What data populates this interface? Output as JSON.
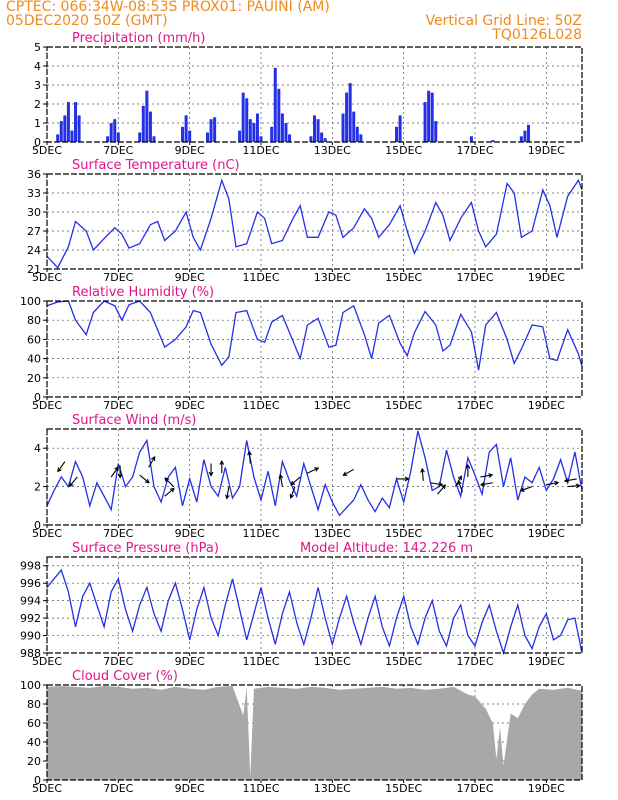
{
  "header": {
    "line1_left": "CPTEC:   066:34W-08:53S   PROX01: PAUINI (AM)",
    "line2_left": "05DEC2020 50Z (GMT)",
    "line2_right": "Vertical Grid Line: 50Z",
    "line3_right": "TQ0126L028"
  },
  "chart_data": [
    {
      "id": "precip",
      "type": "bar",
      "title": "Precipitation (mm/h)",
      "ylim": [
        0,
        5
      ],
      "yticks": [
        0,
        1,
        2,
        3,
        4,
        5
      ],
      "x_tick_labels": [
        "5DEC",
        "7DEC",
        "9DEC",
        "11DEC",
        "13DEC",
        "15DEC",
        "17DEC",
        "19DEC"
      ],
      "x_range_days": [
        5,
        20
      ],
      "x": [
        5.3,
        5.4,
        5.5,
        5.6,
        5.7,
        5.8,
        5.9,
        6.7,
        6.8,
        6.9,
        7.0,
        7.6,
        7.7,
        7.8,
        7.9,
        8.0,
        8.8,
        8.9,
        9.0,
        9.5,
        9.6,
        9.7,
        10.4,
        10.5,
        10.6,
        10.7,
        10.8,
        10.9,
        11.0,
        11.3,
        11.4,
        11.5,
        11.6,
        11.7,
        11.8,
        12.4,
        12.5,
        12.6,
        12.7,
        12.8,
        13.3,
        13.4,
        13.5,
        13.6,
        13.7,
        13.8,
        14.8,
        14.9,
        15.6,
        15.7,
        15.8,
        15.9,
        16.9,
        17.5,
        18.3,
        18.4,
        18.5
      ],
      "values": [
        0.4,
        1.1,
        1.4,
        2.1,
        0.6,
        2.1,
        1.4,
        0.3,
        1.0,
        1.2,
        0.5,
        0.5,
        1.9,
        2.7,
        1.6,
        0.3,
        0.8,
        1.4,
        0.6,
        0.5,
        1.2,
        1.3,
        0.6,
        2.6,
        2.3,
        1.2,
        1.0,
        1.5,
        0.3,
        0.8,
        3.9,
        2.8,
        1.5,
        1.0,
        0.4,
        0.3,
        1.4,
        1.2,
        0.5,
        0.2,
        1.5,
        2.6,
        3.1,
        1.6,
        0.8,
        0.4,
        0.8,
        1.4,
        2.1,
        2.7,
        2.6,
        1.1,
        0.3,
        0.1,
        0.3,
        0.6,
        0.9
      ]
    },
    {
      "id": "temp",
      "type": "line",
      "title": "Surface Temperature (nC)",
      "ylim": [
        21,
        36
      ],
      "yticks": [
        21,
        24,
        27,
        30,
        33,
        36
      ],
      "x_tick_labels": [
        "5DEC",
        "7DEC",
        "9DEC",
        "11DEC",
        "13DEC",
        "15DEC",
        "17DEC",
        "19DEC"
      ],
      "x_range_days": [
        5,
        20
      ],
      "x": [
        5.0,
        5.3,
        5.6,
        5.8,
        6.1,
        6.3,
        6.6,
        6.9,
        7.1,
        7.3,
        7.6,
        7.9,
        8.1,
        8.3,
        8.6,
        8.9,
        9.1,
        9.3,
        9.6,
        9.9,
        10.1,
        10.3,
        10.6,
        10.9,
        11.1,
        11.3,
        11.6,
        11.9,
        12.1,
        12.3,
        12.6,
        12.9,
        13.1,
        13.3,
        13.6,
        13.9,
        14.1,
        14.3,
        14.6,
        14.9,
        15.1,
        15.3,
        15.6,
        15.9,
        16.1,
        16.3,
        16.6,
        16.9,
        17.1,
        17.3,
        17.6,
        17.9,
        18.1,
        18.3,
        18.6,
        18.9,
        19.1,
        19.3,
        19.6,
        19.9,
        20.0
      ],
      "values": [
        23.0,
        21.2,
        24.5,
        28.5,
        27.0,
        24.0,
        25.8,
        27.5,
        26.5,
        24.3,
        25.0,
        28.0,
        28.5,
        25.5,
        27.0,
        30.0,
        26.0,
        24.0,
        29.0,
        35.0,
        32.0,
        24.5,
        25.0,
        30.0,
        29.0,
        25.0,
        25.5,
        29.0,
        31.0,
        26.0,
        26.0,
        30.0,
        29.5,
        26.0,
        27.5,
        30.5,
        29.0,
        26.0,
        28.0,
        31.0,
        27.0,
        23.5,
        27.0,
        31.5,
        29.5,
        25.5,
        29.0,
        31.5,
        27.0,
        24.5,
        26.5,
        34.5,
        33.0,
        26.0,
        27.0,
        33.5,
        31.0,
        26.0,
        32.5,
        35.0,
        33.5
      ]
    },
    {
      "id": "rh",
      "type": "line",
      "title": "Relative Humidity (%)",
      "ylim": [
        0,
        100
      ],
      "yticks": [
        0,
        20,
        40,
        60,
        80,
        100
      ],
      "x_tick_labels": [
        "5DEC",
        "7DEC",
        "9DEC",
        "11DEC",
        "13DEC",
        "15DEC",
        "17DEC",
        "19DEC"
      ],
      "x_range_days": [
        5,
        20
      ],
      "x": [
        5.0,
        5.3,
        5.6,
        5.8,
        6.1,
        6.3,
        6.6,
        6.9,
        7.1,
        7.3,
        7.6,
        7.9,
        8.1,
        8.3,
        8.6,
        8.9,
        9.1,
        9.3,
        9.6,
        9.9,
        10.1,
        10.3,
        10.6,
        10.9,
        11.1,
        11.3,
        11.6,
        11.9,
        12.1,
        12.3,
        12.6,
        12.9,
        13.1,
        13.3,
        13.6,
        13.9,
        14.1,
        14.3,
        14.6,
        14.9,
        15.1,
        15.3,
        15.6,
        15.9,
        16.1,
        16.3,
        16.6,
        16.9,
        17.1,
        17.3,
        17.6,
        17.9,
        18.1,
        18.3,
        18.6,
        18.9,
        19.1,
        19.3,
        19.6,
        19.9,
        20.0
      ],
      "values": [
        95,
        99,
        100,
        80,
        65,
        88,
        100,
        95,
        80,
        96,
        100,
        88,
        70,
        52,
        60,
        73,
        90,
        88,
        55,
        33,
        42,
        88,
        90,
        60,
        57,
        78,
        85,
        58,
        40,
        75,
        82,
        52,
        54,
        88,
        95,
        65,
        40,
        77,
        85,
        56,
        43,
        67,
        89,
        75,
        48,
        54,
        86,
        68,
        28,
        75,
        88,
        60,
        35,
        50,
        75,
        73,
        40,
        38,
        70,
        45,
        32
      ]
    },
    {
      "id": "wind",
      "type": "line",
      "title": "Surface Wind (m/s)",
      "ylim": [
        0,
        5
      ],
      "yticks": [
        0,
        2,
        4
      ],
      "x_tick_labels": [
        "5DEC",
        "7DEC",
        "9DEC",
        "11DEC",
        "13DEC",
        "15DEC",
        "17DEC",
        "19DEC"
      ],
      "x_range_days": [
        5,
        20
      ],
      "x": [
        5.0,
        5.2,
        5.4,
        5.6,
        5.8,
        6.0,
        6.2,
        6.4,
        6.6,
        6.8,
        7.0,
        7.2,
        7.4,
        7.6,
        7.8,
        8.0,
        8.2,
        8.4,
        8.6,
        8.8,
        9.0,
        9.2,
        9.4,
        9.6,
        9.8,
        10.0,
        10.2,
        10.4,
        10.6,
        10.8,
        11.0,
        11.2,
        11.4,
        11.6,
        11.8,
        12.0,
        12.2,
        12.4,
        12.6,
        12.8,
        13.0,
        13.2,
        13.4,
        13.6,
        13.8,
        14.0,
        14.2,
        14.4,
        14.6,
        14.8,
        15.0,
        15.2,
        15.4,
        15.6,
        15.8,
        16.0,
        16.2,
        16.4,
        16.6,
        16.8,
        17.0,
        17.2,
        17.4,
        17.6,
        17.8,
        18.0,
        18.2,
        18.4,
        18.6,
        18.8,
        19.0,
        19.2,
        19.4,
        19.6,
        19.8,
        20.0
      ],
      "values": [
        1.0,
        1.8,
        2.5,
        2.0,
        3.3,
        2.5,
        1.0,
        2.2,
        1.5,
        0.8,
        3.2,
        2.0,
        2.5,
        3.8,
        4.4,
        2.0,
        1.2,
        2.5,
        3.0,
        1.0,
        2.4,
        1.2,
        3.4,
        2.0,
        1.5,
        3.0,
        1.4,
        2.0,
        4.4,
        2.5,
        1.3,
        2.8,
        1.0,
        3.3,
        2.3,
        1.5,
        3.2,
        2.0,
        0.8,
        2.1,
        1.2,
        0.5,
        0.9,
        1.3,
        2.1,
        1.3,
        0.7,
        1.4,
        0.9,
        2.4,
        1.2,
        2.8,
        4.9,
        3.5,
        1.8,
        2.0,
        3.9,
        2.5,
        1.5,
        3.5,
        2.6,
        1.6,
        3.8,
        4.2,
        2.0,
        3.5,
        1.3,
        2.5,
        2.2,
        3.0,
        1.8,
        2.4,
        3.4,
        2.2,
        3.8,
        1.8
      ]
    },
    {
      "id": "pressure",
      "type": "line",
      "title": "Surface Pressure (hPa)",
      "annotation": "Model Altitude: 142.226  m",
      "ylim": [
        988,
        999
      ],
      "yticks": [
        988,
        990,
        992,
        994,
        996,
        998
      ],
      "x_tick_labels": [
        "5DEC",
        "7DEC",
        "9DEC",
        "11DEC",
        "13DEC",
        "15DEC",
        "17DEC",
        "19DEC"
      ],
      "x_range_days": [
        5,
        20
      ],
      "x": [
        5.0,
        5.2,
        5.4,
        5.6,
        5.8,
        6.0,
        6.2,
        6.4,
        6.6,
        6.8,
        7.0,
        7.2,
        7.4,
        7.6,
        7.8,
        8.0,
        8.2,
        8.4,
        8.6,
        8.8,
        9.0,
        9.2,
        9.4,
        9.6,
        9.8,
        10.0,
        10.2,
        10.4,
        10.6,
        10.8,
        11.0,
        11.2,
        11.4,
        11.6,
        11.8,
        12.0,
        12.2,
        12.4,
        12.6,
        12.8,
        13.0,
        13.2,
        13.4,
        13.6,
        13.8,
        14.0,
        14.2,
        14.4,
        14.6,
        14.8,
        15.0,
        15.2,
        15.4,
        15.6,
        15.8,
        16.0,
        16.2,
        16.4,
        16.6,
        16.8,
        17.0,
        17.2,
        17.4,
        17.6,
        17.8,
        18.0,
        18.2,
        18.4,
        18.6,
        18.8,
        19.0,
        19.2,
        19.4,
        19.6,
        19.8,
        20.0
      ],
      "values": [
        995.5,
        996.5,
        997.5,
        995.0,
        991.0,
        994.5,
        996.0,
        993.5,
        991.0,
        995.0,
        996.5,
        993.0,
        990.5,
        993.5,
        995.5,
        992.5,
        990.5,
        994.0,
        996.0,
        993.0,
        989.5,
        993.0,
        995.5,
        992.0,
        990.0,
        993.5,
        996.5,
        993.0,
        989.5,
        992.5,
        995.5,
        992.0,
        989.0,
        992.5,
        995.0,
        991.5,
        989.0,
        992.0,
        995.5,
        992.0,
        989.0,
        992.0,
        994.5,
        991.5,
        989.0,
        992.0,
        994.5,
        991.0,
        988.8,
        992.0,
        994.5,
        991.0,
        989.0,
        992.0,
        994.0,
        990.5,
        988.8,
        992.0,
        993.5,
        990.0,
        988.8,
        991.5,
        993.5,
        990.5,
        988.0,
        991.0,
        993.5,
        990.0,
        988.5,
        991.0,
        992.5,
        989.5,
        990.0,
        991.8,
        992.0,
        988.0
      ]
    },
    {
      "id": "cloud",
      "type": "area",
      "title": "Cloud Cover (%)",
      "ylim": [
        0,
        100
      ],
      "yticks": [
        0,
        20,
        40,
        60,
        80,
        100
      ],
      "x_tick_labels": [
        "5DEC",
        "7DEC",
        "9DEC",
        "11DEC",
        "13DEC",
        "15DEC",
        "17DEC",
        "19DEC"
      ],
      "x_range_days": [
        5,
        20
      ],
      "x": [
        5.0,
        5.4,
        5.8,
        6.2,
        6.6,
        7.0,
        7.4,
        7.8,
        8.2,
        8.6,
        9.0,
        9.4,
        9.8,
        10.2,
        10.5,
        10.6,
        10.7,
        10.8,
        11.2,
        11.6,
        12.0,
        12.4,
        12.8,
        13.2,
        13.6,
        14.0,
        14.4,
        14.8,
        15.2,
        15.6,
        16.0,
        16.4,
        16.8,
        17.0,
        17.3,
        17.5,
        17.6,
        17.7,
        17.8,
        18.0,
        18.2,
        18.4,
        18.6,
        18.8,
        19.2,
        19.6,
        20.0
      ],
      "values": [
        98,
        99,
        98,
        97,
        99,
        98,
        96,
        97,
        95,
        98,
        96,
        95,
        98,
        99,
        68,
        97,
        3,
        96,
        98,
        97,
        96,
        98,
        97,
        95,
        96,
        97,
        98,
        96,
        97,
        95,
        96,
        98,
        90,
        88,
        75,
        60,
        22,
        55,
        15,
        70,
        65,
        80,
        90,
        96,
        95,
        97,
        94
      ]
    }
  ],
  "wind_vectors": [
    {
      "day": 5.5,
      "speed": 3.3,
      "angle": 235
    },
    {
      "day": 5.85,
      "speed": 2.5,
      "angle": 230
    },
    {
      "day": 6.8,
      "speed": 2.5,
      "angle": 55
    },
    {
      "day": 7.05,
      "speed": 3.1,
      "angle": 270
    },
    {
      "day": 7.6,
      "speed": 2.6,
      "angle": 320
    },
    {
      "day": 7.85,
      "speed": 3.0,
      "angle": 60
    },
    {
      "day": 8.3,
      "speed": 1.5,
      "angle": 40
    },
    {
      "day": 8.55,
      "speed": 2.0,
      "angle": 135
    },
    {
      "day": 9.6,
      "speed": 3.2,
      "angle": 270
    },
    {
      "day": 9.9,
      "speed": 2.7,
      "angle": 90
    },
    {
      "day": 10.1,
      "speed": 2.0,
      "angle": 260
    },
    {
      "day": 10.7,
      "speed": 3.2,
      "angle": 95
    },
    {
      "day": 11.6,
      "speed": 2.0,
      "angle": 100
    },
    {
      "day": 11.95,
      "speed": 2.0,
      "angle": 250
    },
    {
      "day": 12.1,
      "speed": 2.5,
      "angle": 220
    },
    {
      "day": 12.3,
      "speed": 2.7,
      "angle": 25
    },
    {
      "day": 13.6,
      "speed": 2.9,
      "angle": 210
    },
    {
      "day": 14.8,
      "speed": 2.4,
      "angle": 0
    },
    {
      "day": 15.55,
      "speed": 2.3,
      "angle": 95
    },
    {
      "day": 15.75,
      "speed": 2.2,
      "angle": 350
    },
    {
      "day": 15.95,
      "speed": 1.6,
      "angle": 50
    },
    {
      "day": 16.45,
      "speed": 2.0,
      "angle": 60
    },
    {
      "day": 16.65,
      "speed": 1.7,
      "angle": 110
    },
    {
      "day": 16.8,
      "speed": 2.5,
      "angle": 90
    },
    {
      "day": 17.15,
      "speed": 2.5,
      "angle": 10
    },
    {
      "day": 17.5,
      "speed": 2.2,
      "angle": 190
    },
    {
      "day": 18.6,
      "speed": 2.0,
      "angle": 200
    },
    {
      "day": 19.0,
      "speed": 2.1,
      "angle": 10
    },
    {
      "day": 19.6,
      "speed": 2.0,
      "angle": 5
    },
    {
      "day": 19.85,
      "speed": 2.4,
      "angle": 190
    }
  ],
  "colors": {
    "header": "#f08a1c",
    "panel_title": "#e2148c",
    "series": "#2330e6",
    "cloud_fill": "#a8a8a8"
  }
}
